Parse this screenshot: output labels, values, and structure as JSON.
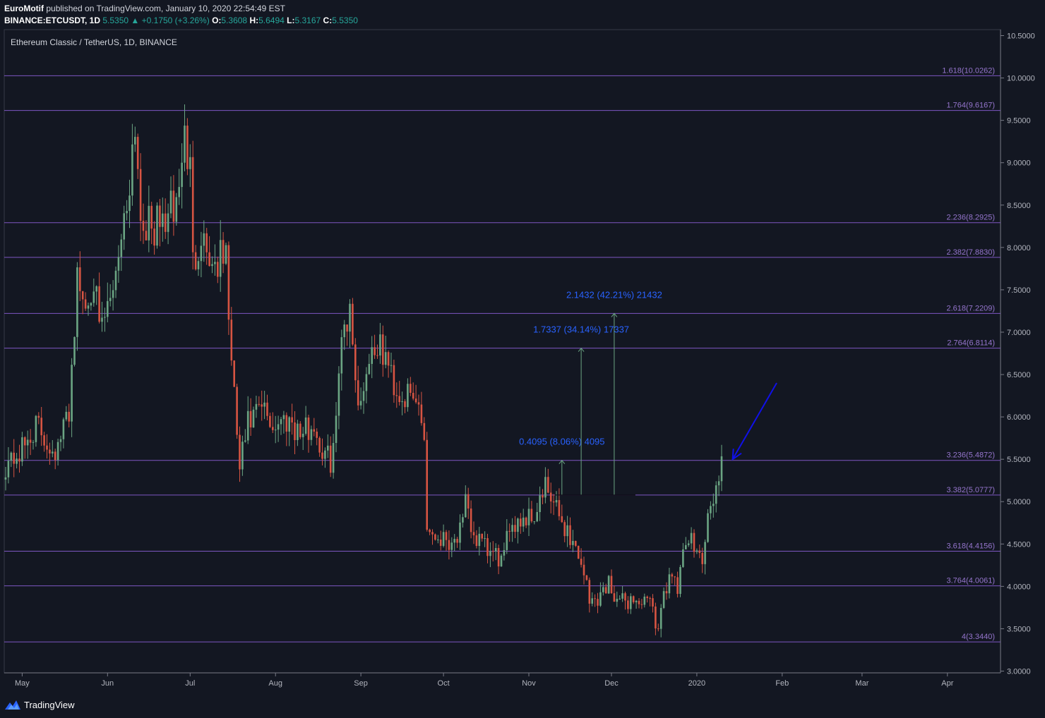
{
  "header": {
    "author": "EuroMotif",
    "published_text": "published on TradingView.com, January 10, 2020 22:54:49 EST",
    "symbol": "BINANCE:ETCUSDT, 1D",
    "last": "5.5350",
    "change": "+0.1750 (+3.26%)",
    "o_label": "O:",
    "o": "5.3608",
    "h_label": "H:",
    "h": "5.6494",
    "l_label": "L:",
    "l": "5.3167",
    "c_label": "C:",
    "c": "5.5350"
  },
  "footer": {
    "brand": "TradingView"
  },
  "colors": {
    "background": "#131722",
    "bull": "#6ba583",
    "bear": "#d75442",
    "fib_line": "#7e57c2",
    "fib_label": "#9575cd",
    "measure_text": "#2962ff",
    "arrow": "#1010e8",
    "grid_text": "#b2b5be"
  },
  "chart_data": {
    "type": "candlestick",
    "title": "Ethereum Classic / TetherUS, 1D, BINANCE",
    "ylim": [
      3.0,
      10.5
    ],
    "y_ticks": [
      "10.5000",
      "10.0000",
      "9.5000",
      "9.0000",
      "8.5000",
      "8.0000",
      "7.5000",
      "7.0000",
      "6.5000",
      "6.0000",
      "5.5000",
      "5.0000",
      "4.5000",
      "4.0000",
      "3.5000",
      "3.0000"
    ],
    "x_ticks": [
      "May",
      "Jun",
      "Jul",
      "Aug",
      "Sep",
      "Oct",
      "Nov",
      "Dec",
      "2020",
      "Feb",
      "Mar",
      "Apr"
    ],
    "x_start": "2019-04-25",
    "fib_levels": [
      {
        "label": "1.618(10.0262)",
        "value": 10.0262
      },
      {
        "label": "1.764(9.6167)",
        "value": 9.6167
      },
      {
        "label": "2.236(8.2925)",
        "value": 8.2925
      },
      {
        "label": "2.382(7.8830)",
        "value": 7.883
      },
      {
        "label": "2.618(7.2209)",
        "value": 7.2209
      },
      {
        "label": "2.764(6.8114)",
        "value": 6.8114
      },
      {
        "label": "3.236(5.4872)",
        "value": 5.4872
      },
      {
        "label": "3.382(5.0777)",
        "value": 5.0777
      },
      {
        "label": "3.618(4.4156)",
        "value": 4.4156
      },
      {
        "label": "3.764(4.0061)",
        "value": 4.0061
      },
      {
        "label": "4(3.3440)",
        "value": 3.344
      }
    ],
    "measurements": [
      {
        "label": "0.4095 (8.06%) 4095",
        "from": 5.0777,
        "to": 5.4872,
        "date": "2019-11-13"
      },
      {
        "label": "1.7337 (34.14%) 17337",
        "from": 5.0777,
        "to": 6.8114,
        "date": "2019-11-20"
      },
      {
        "label": "2.1432 (42.21%) 21432",
        "from": 5.0777,
        "to": 7.2209,
        "date": "2019-12-02"
      }
    ],
    "annotation_arrow": {
      "from_date": "2020-01-30",
      "from_value": 6.4,
      "to_date": "2020-01-14",
      "to_value": 5.5
    },
    "anchors": [
      {
        "date": "2019-04-25",
        "value": 5.45
      },
      {
        "date": "2019-05-01",
        "value": 5.6
      },
      {
        "date": "2019-05-06",
        "value": 5.9
      },
      {
        "date": "2019-05-10",
        "value": 5.7
      },
      {
        "date": "2019-05-14",
        "value": 5.6
      },
      {
        "date": "2019-05-18",
        "value": 6.1
      },
      {
        "date": "2019-05-21",
        "value": 7.6
      },
      {
        "date": "2019-05-24",
        "value": 7.3
      },
      {
        "date": "2019-05-27",
        "value": 7.7
      },
      {
        "date": "2019-05-29",
        "value": 6.95
      },
      {
        "date": "2019-06-02",
        "value": 7.35
      },
      {
        "date": "2019-06-05",
        "value": 8.0
      },
      {
        "date": "2019-06-08",
        "value": 8.5
      },
      {
        "date": "2019-06-10",
        "value": 9.2
      },
      {
        "date": "2019-06-11",
        "value": 9.5
      },
      {
        "date": "2019-06-13",
        "value": 8.4
      },
      {
        "date": "2019-06-17",
        "value": 8.2
      },
      {
        "date": "2019-06-21",
        "value": 8.3
      },
      {
        "date": "2019-06-26",
        "value": 8.5
      },
      {
        "date": "2019-06-29",
        "value": 9.3
      },
      {
        "date": "2019-07-01",
        "value": 8.9
      },
      {
        "date": "2019-07-02",
        "value": 7.8
      },
      {
        "date": "2019-07-05",
        "value": 8.2
      },
      {
        "date": "2019-07-09",
        "value": 7.8
      },
      {
        "date": "2019-07-14",
        "value": 7.9
      },
      {
        "date": "2019-07-16",
        "value": 6.6
      },
      {
        "date": "2019-07-19",
        "value": 5.4
      },
      {
        "date": "2019-07-22",
        "value": 5.9
      },
      {
        "date": "2019-07-27",
        "value": 6.1
      },
      {
        "date": "2019-07-31",
        "value": 5.9
      },
      {
        "date": "2019-08-06",
        "value": 6.0
      },
      {
        "date": "2019-08-10",
        "value": 5.8
      },
      {
        "date": "2019-08-15",
        "value": 5.9
      },
      {
        "date": "2019-08-18",
        "value": 5.55
      },
      {
        "date": "2019-08-21",
        "value": 5.5
      },
      {
        "date": "2019-08-23",
        "value": 5.9
      },
      {
        "date": "2019-08-25",
        "value": 7.1
      },
      {
        "date": "2019-08-28",
        "value": 7.2
      },
      {
        "date": "2019-08-30",
        "value": 6.6
      },
      {
        "date": "2019-08-31",
        "value": 6.1
      },
      {
        "date": "2019-09-04",
        "value": 6.7
      },
      {
        "date": "2019-09-06",
        "value": 6.85
      },
      {
        "date": "2019-09-10",
        "value": 6.7
      },
      {
        "date": "2019-09-14",
        "value": 6.3
      },
      {
        "date": "2019-09-19",
        "value": 6.2
      },
      {
        "date": "2019-09-22",
        "value": 6.15
      },
      {
        "date": "2019-09-24",
        "value": 5.8
      },
      {
        "date": "2019-09-25",
        "value": 4.7
      },
      {
        "date": "2019-09-28",
        "value": 4.6
      },
      {
        "date": "2019-10-05",
        "value": 4.55
      },
      {
        "date": "2019-10-08",
        "value": 4.7
      },
      {
        "date": "2019-10-09",
        "value": 4.95
      },
      {
        "date": "2019-10-12",
        "value": 4.6
      },
      {
        "date": "2019-10-17",
        "value": 4.4
      },
      {
        "date": "2019-10-23",
        "value": 4.3
      },
      {
        "date": "2019-10-25",
        "value": 4.75
      },
      {
        "date": "2019-10-29",
        "value": 4.8
      },
      {
        "date": "2019-11-03",
        "value": 4.85
      },
      {
        "date": "2019-11-07",
        "value": 5.15
      },
      {
        "date": "2019-11-10",
        "value": 4.95
      },
      {
        "date": "2019-11-15",
        "value": 4.65
      },
      {
        "date": "2019-11-18",
        "value": 4.45
      },
      {
        "date": "2019-11-21",
        "value": 4.2
      },
      {
        "date": "2019-11-23",
        "value": 3.8
      },
      {
        "date": "2019-11-27",
        "value": 3.9
      },
      {
        "date": "2019-11-30",
        "value": 4.05
      },
      {
        "date": "2019-12-04",
        "value": 3.8
      },
      {
        "date": "2019-12-08",
        "value": 3.85
      },
      {
        "date": "2019-12-13",
        "value": 3.8
      },
      {
        "date": "2019-12-16",
        "value": 3.75
      },
      {
        "date": "2019-12-18",
        "value": 3.45
      },
      {
        "date": "2019-12-19",
        "value": 3.8
      },
      {
        "date": "2019-12-22",
        "value": 4.15
      },
      {
        "date": "2019-12-25",
        "value": 3.95
      },
      {
        "date": "2019-12-28",
        "value": 4.5
      },
      {
        "date": "2020-01-01",
        "value": 4.55
      },
      {
        "date": "2020-01-03",
        "value": 4.25
      },
      {
        "date": "2020-01-05",
        "value": 4.85
      },
      {
        "date": "2020-01-07",
        "value": 4.95
      },
      {
        "date": "2020-01-09",
        "value": 5.36
      },
      {
        "date": "2020-01-10",
        "value": 5.535
      }
    ]
  }
}
